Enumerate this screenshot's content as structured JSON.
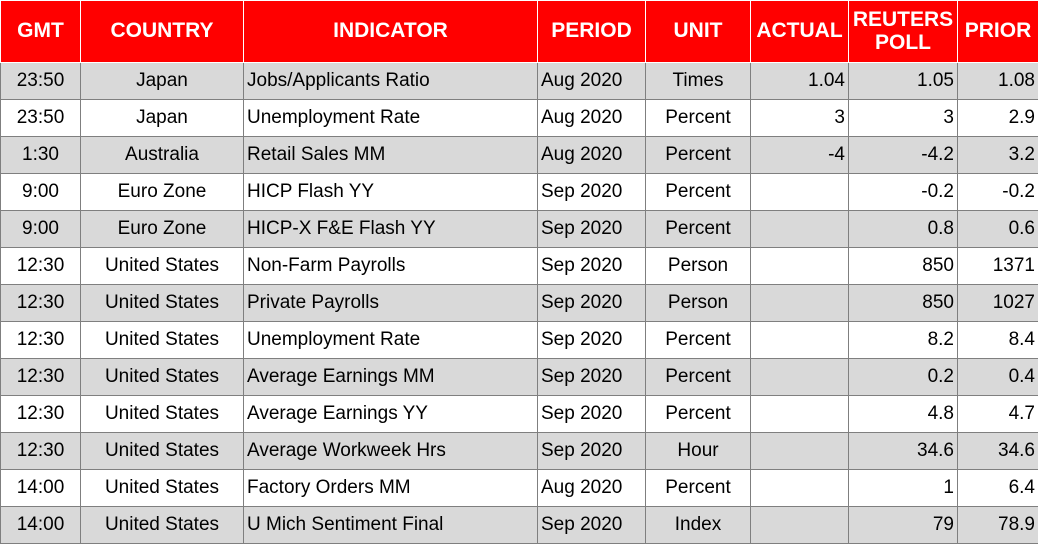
{
  "table": {
    "header": [
      "GMT",
      "COUNTRY",
      "INDICATOR",
      "PERIOD",
      "UNIT",
      "ACTUAL",
      "REUTERS POLL",
      "PRIOR"
    ],
    "rows": [
      [
        "23:50",
        "Japan",
        "Jobs/Applicants Ratio",
        "Aug 2020",
        "Times",
        "1.04",
        "1.05",
        "1.08"
      ],
      [
        "23:50",
        "Japan",
        "Unemployment Rate",
        "Aug 2020",
        "Percent",
        "3",
        "3",
        "2.9"
      ],
      [
        "1:30",
        "Australia",
        "Retail Sales MM",
        "Aug 2020",
        "Percent",
        "-4",
        "-4.2",
        "3.2"
      ],
      [
        "9:00",
        "Euro Zone",
        "HICP Flash YY",
        "Sep 2020",
        "Percent",
        null,
        "-0.2",
        "-0.2"
      ],
      [
        "9:00",
        "Euro Zone",
        "HICP-X F&E Flash YY",
        "Sep 2020",
        "Percent",
        null,
        "0.8",
        "0.6"
      ],
      [
        "12:30",
        "United States",
        "Non-Farm Payrolls",
        "Sep 2020",
        "Person",
        null,
        "850",
        "1371"
      ],
      [
        "12:30",
        "United States",
        "Private Payrolls",
        "Sep 2020",
        "Person",
        null,
        "850",
        "1027"
      ],
      [
        "12:30",
        "United States",
        "Unemployment Rate",
        "Sep 2020",
        "Percent",
        null,
        "8.2",
        "8.4"
      ],
      [
        "12:30",
        "United States",
        "Average Earnings MM",
        "Sep 2020",
        "Percent",
        null,
        "0.2",
        "0.4"
      ],
      [
        "12:30",
        "United States",
        "Average Earnings YY",
        "Sep 2020",
        "Percent",
        null,
        "4.8",
        "4.7"
      ],
      [
        "12:30",
        "United States",
        "Average Workweek Hrs",
        "Sep 2020",
        "Hour",
        null,
        "34.6",
        "34.6"
      ],
      [
        "14:00",
        "United States",
        "Factory Orders MM",
        "Aug 2020",
        "Percent",
        null,
        "1",
        "6.4"
      ],
      [
        "14:00",
        "United States",
        "U Mich Sentiment Final",
        "Sep 2020",
        "Index",
        null,
        "79",
        "78.9"
      ]
    ]
  }
}
